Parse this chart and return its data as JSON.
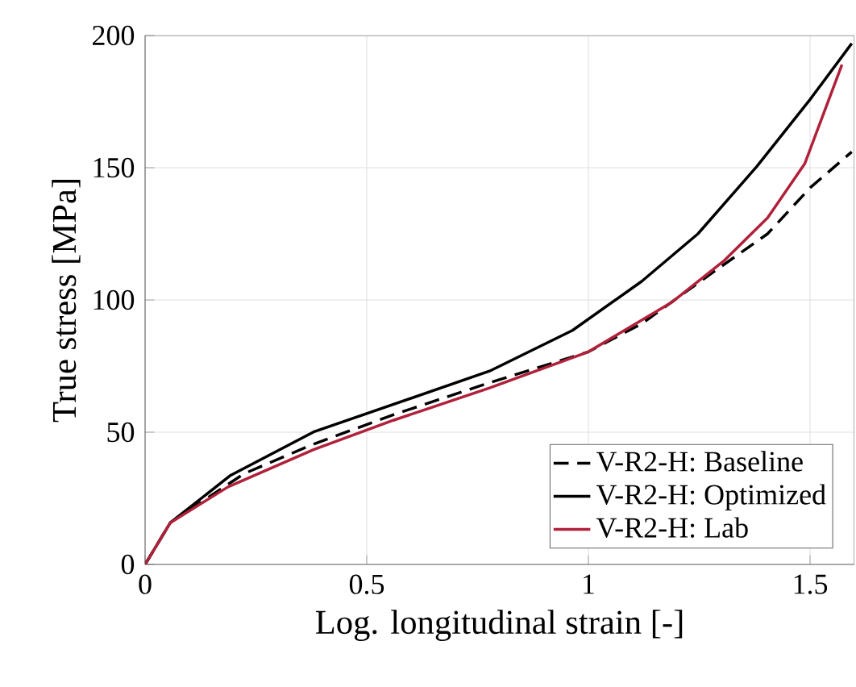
{
  "chart_data": {
    "type": "line",
    "xlabel": "Log. longitudinal strain [-]",
    "ylabel": "True stress [MPa]",
    "xlim": [
      0,
      1.6
    ],
    "ylim": [
      0,
      200
    ],
    "xticks": [
      0,
      0.5,
      1,
      1.5
    ],
    "yticks": [
      0,
      50,
      100,
      150,
      200
    ],
    "grid": true,
    "legend": "bottom right",
    "marker": "none",
    "series": [
      {
        "name": "V-R2-H: Baseline",
        "color": "#000000",
        "line_style": "dashed",
        "x": [
          0,
          0.057,
          0.223,
          0.38,
          0.56,
          0.777,
          1.0,
          1.12,
          1.283,
          1.404,
          1.5,
          1.594
        ],
        "values": [
          0,
          15.8,
          34.3,
          45.5,
          56.6,
          68.7,
          80.4,
          91,
          110.7,
          125,
          142.4,
          156
        ]
      },
      {
        "name": "V-R2-H: Optimized",
        "color": "#000000",
        "line_style": "solid",
        "x": [
          0,
          0.057,
          0.193,
          0.38,
          0.777,
          0.964,
          1.12,
          1.247,
          1.38,
          1.5,
          1.594
        ],
        "values": [
          0,
          15.8,
          33.7,
          50.1,
          73.1,
          88.5,
          107,
          125,
          150.5,
          175.8,
          197
        ]
      },
      {
        "name": "V-R2-H: Lab",
        "color": "#b0213a",
        "line_style": "solid",
        "x": [
          0,
          0.057,
          0.187,
          0.38,
          0.56,
          0.777,
          1.0,
          1.187,
          1.307,
          1.404,
          1.488,
          1.572
        ],
        "values": [
          0,
          15.8,
          29.3,
          43.4,
          54.5,
          66.7,
          80.4,
          99,
          115,
          131,
          151.5,
          189
        ]
      }
    ]
  }
}
